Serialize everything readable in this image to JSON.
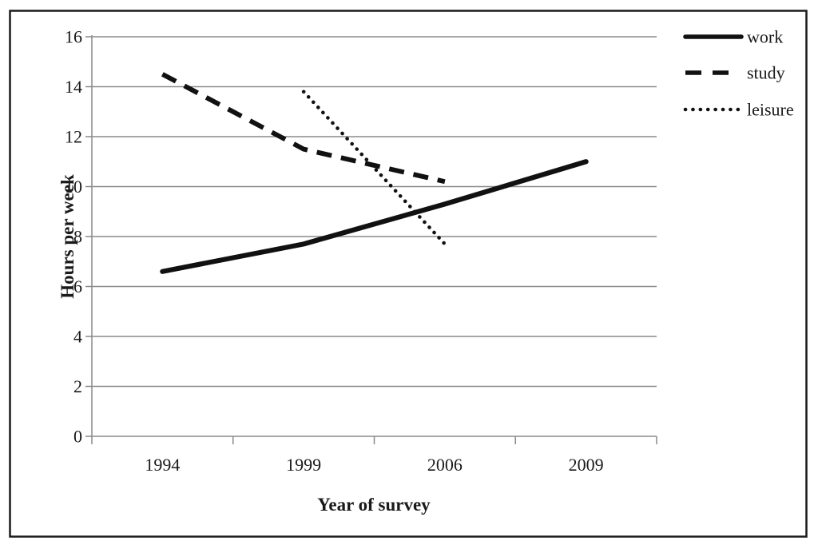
{
  "chart_data": {
    "type": "line",
    "title": "",
    "xlabel": "Year of survey",
    "ylabel": "Hours per week",
    "categories": [
      "1994",
      "1999",
      "2006",
      "2009"
    ],
    "y_ticks": [
      0,
      2,
      4,
      6,
      8,
      10,
      12,
      14,
      16
    ],
    "ylim": [
      0,
      16
    ],
    "grid": true,
    "legend_position": "top-right-outside",
    "series": [
      {
        "name": "work",
        "style": "solid",
        "values": [
          6.6,
          7.7,
          9.3,
          11.0
        ]
      },
      {
        "name": "study",
        "style": "dashed",
        "values": [
          14.5,
          11.5,
          10.2,
          null
        ]
      },
      {
        "name": "leisure",
        "style": "dotted",
        "values": [
          null,
          13.8,
          7.7,
          null
        ]
      }
    ],
    "colors": {
      "line": "#111111",
      "grid": "#8a8a8a",
      "text": "#1a1a1a",
      "background": "#ffffff",
      "frame": "#1a1a1a"
    }
  }
}
